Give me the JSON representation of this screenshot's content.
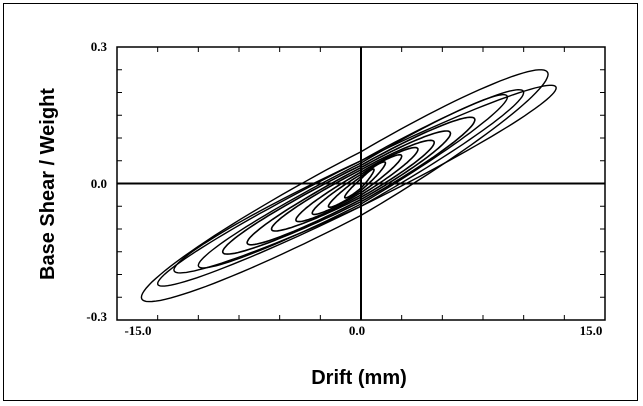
{
  "chart_data": {
    "type": "line",
    "title": "",
    "xlabel": "Drift (mm)",
    "ylabel": "Base Shear / Weight",
    "xlim": [
      -15.0,
      15.0
    ],
    "ylim": [
      -0.3,
      0.3
    ],
    "xticks": [
      -15.0,
      0.0,
      15.0
    ],
    "xtick_labels": [
      "-15.0",
      "0.0",
      "15.0"
    ],
    "yticks": [
      -0.3,
      0.0,
      0.3
    ],
    "ytick_labels": [
      "-0.3",
      "0.0",
      "0.3"
    ],
    "grid": false,
    "zero_lines": true,
    "line_color": "#000000",
    "series": [
      {
        "values_description": "hysteresis loops",
        "loops": [
          {
            "amp_pos": 11.5,
            "amp_neg": 13.5,
            "peak_pos": 0.24,
            "peak_neg": -0.25,
            "width": 0.07
          },
          {
            "amp_pos": 12.0,
            "amp_neg": 12.5,
            "peak_pos": 0.21,
            "peak_neg": -0.22,
            "width": 0.05
          },
          {
            "amp_pos": 10.0,
            "amp_neg": 11.5,
            "peak_pos": 0.2,
            "peak_neg": -0.19,
            "width": 0.05
          },
          {
            "amp_pos": 9.0,
            "amp_neg": 10.0,
            "peak_pos": 0.19,
            "peak_neg": -0.18,
            "width": 0.045
          },
          {
            "amp_pos": 7.0,
            "amp_neg": 8.5,
            "peak_pos": 0.14,
            "peak_neg": -0.15,
            "width": 0.04
          },
          {
            "amp_pos": 5.5,
            "amp_neg": 7.0,
            "peak_pos": 0.11,
            "peak_neg": -0.13,
            "width": 0.035
          },
          {
            "amp_pos": 4.5,
            "amp_neg": 5.5,
            "peak_pos": 0.09,
            "peak_neg": -0.1,
            "width": 0.03
          },
          {
            "amp_pos": 3.5,
            "amp_neg": 4.0,
            "peak_pos": 0.075,
            "peak_neg": -0.08,
            "width": 0.025
          },
          {
            "amp_pos": 2.5,
            "amp_neg": 3.0,
            "peak_pos": 0.06,
            "peak_neg": -0.065,
            "width": 0.02
          },
          {
            "amp_pos": 1.5,
            "amp_neg": 2.0,
            "peak_pos": 0.045,
            "peak_neg": -0.05,
            "width": 0.015
          },
          {
            "amp_pos": 0.8,
            "amp_neg": 1.0,
            "peak_pos": 0.03,
            "peak_neg": -0.03,
            "width": 0.01
          }
        ]
      }
    ]
  }
}
